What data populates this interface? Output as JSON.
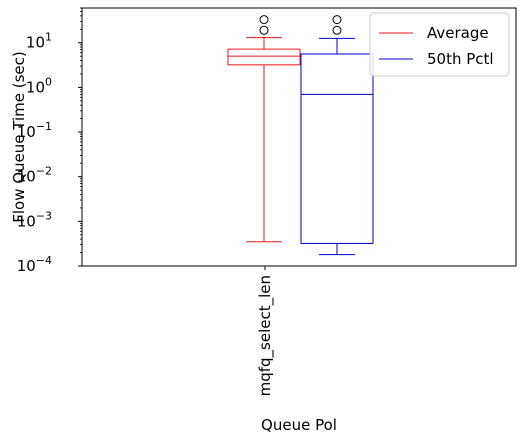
{
  "chart_data": {
    "type": "box",
    "xlabel": "Queue Pol",
    "ylabel": "Flow Queue Time (sec)",
    "yscale": "log",
    "ylim": [
      0.0001,
      60
    ],
    "yticks": [
      {
        "value": 0.0001,
        "base": "10",
        "exp": "−4"
      },
      {
        "value": 0.001,
        "base": "10",
        "exp": "−3"
      },
      {
        "value": 0.01,
        "base": "10",
        "exp": "−2"
      },
      {
        "value": 0.1,
        "base": "10",
        "exp": "−1"
      },
      {
        "value": 1,
        "base": "10",
        "exp": "0"
      },
      {
        "value": 10,
        "base": "10",
        "exp": "1"
      }
    ],
    "categories": [
      "mqfq_select_len"
    ],
    "grid": false,
    "legend_position": "top-right",
    "series": [
      {
        "name": "Average",
        "color": "#e41a1c",
        "stats": {
          "whisker_low": 0.00035,
          "q1": 3.2,
          "median": 5.0,
          "q3": 7.2,
          "whisker_high": 13.0,
          "fliers": [
            19.0,
            33.0
          ]
        }
      },
      {
        "name": "50th Pctl",
        "color": "#0000cc",
        "stats": {
          "whisker_low": 0.00018,
          "q1": 0.00032,
          "median": 0.7,
          "q3": 5.6,
          "whisker_high": 12.5,
          "fliers": [
            19.0,
            33.0
          ]
        }
      }
    ]
  }
}
